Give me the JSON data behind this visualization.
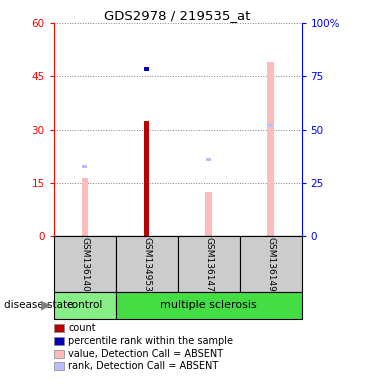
{
  "title": "GDS2978 / 219535_at",
  "samples": [
    "GSM136140",
    "GSM134953",
    "GSM136147",
    "GSM136149"
  ],
  "disease_state": [
    "control",
    "multiple sclerosis",
    "multiple sclerosis",
    "multiple sclerosis"
  ],
  "value_absent": [
    27.5,
    null,
    20.8,
    81.7
  ],
  "rank_absent": [
    33.3,
    null,
    36.7,
    52.5
  ],
  "count_val": [
    null,
    32.5,
    null,
    null
  ],
  "percentile_rank": [
    null,
    47.5,
    null,
    null
  ],
  "ylim_left": [
    0,
    60
  ],
  "ylim_right": [
    0,
    100
  ],
  "yticks_left": [
    0,
    15,
    30,
    45,
    60
  ],
  "yticks_right": [
    0,
    25,
    50,
    75,
    100
  ],
  "color_count": "#bb0000",
  "color_percentile": "#0000bb",
  "color_value_absent": "#ffbbbb",
  "color_rank_absent": "#bbbbff",
  "color_control_bg": "#88ee88",
  "color_ms_bg": "#44dd44",
  "color_sample_bg": "#cccccc",
  "legend_items": [
    {
      "label": "count",
      "color": "#bb0000"
    },
    {
      "label": "percentile rank within the sample",
      "color": "#0000bb"
    },
    {
      "label": "value, Detection Call = ABSENT",
      "color": "#ffbbbb"
    },
    {
      "label": "rank, Detection Call = ABSENT",
      "color": "#bbbbff"
    }
  ]
}
